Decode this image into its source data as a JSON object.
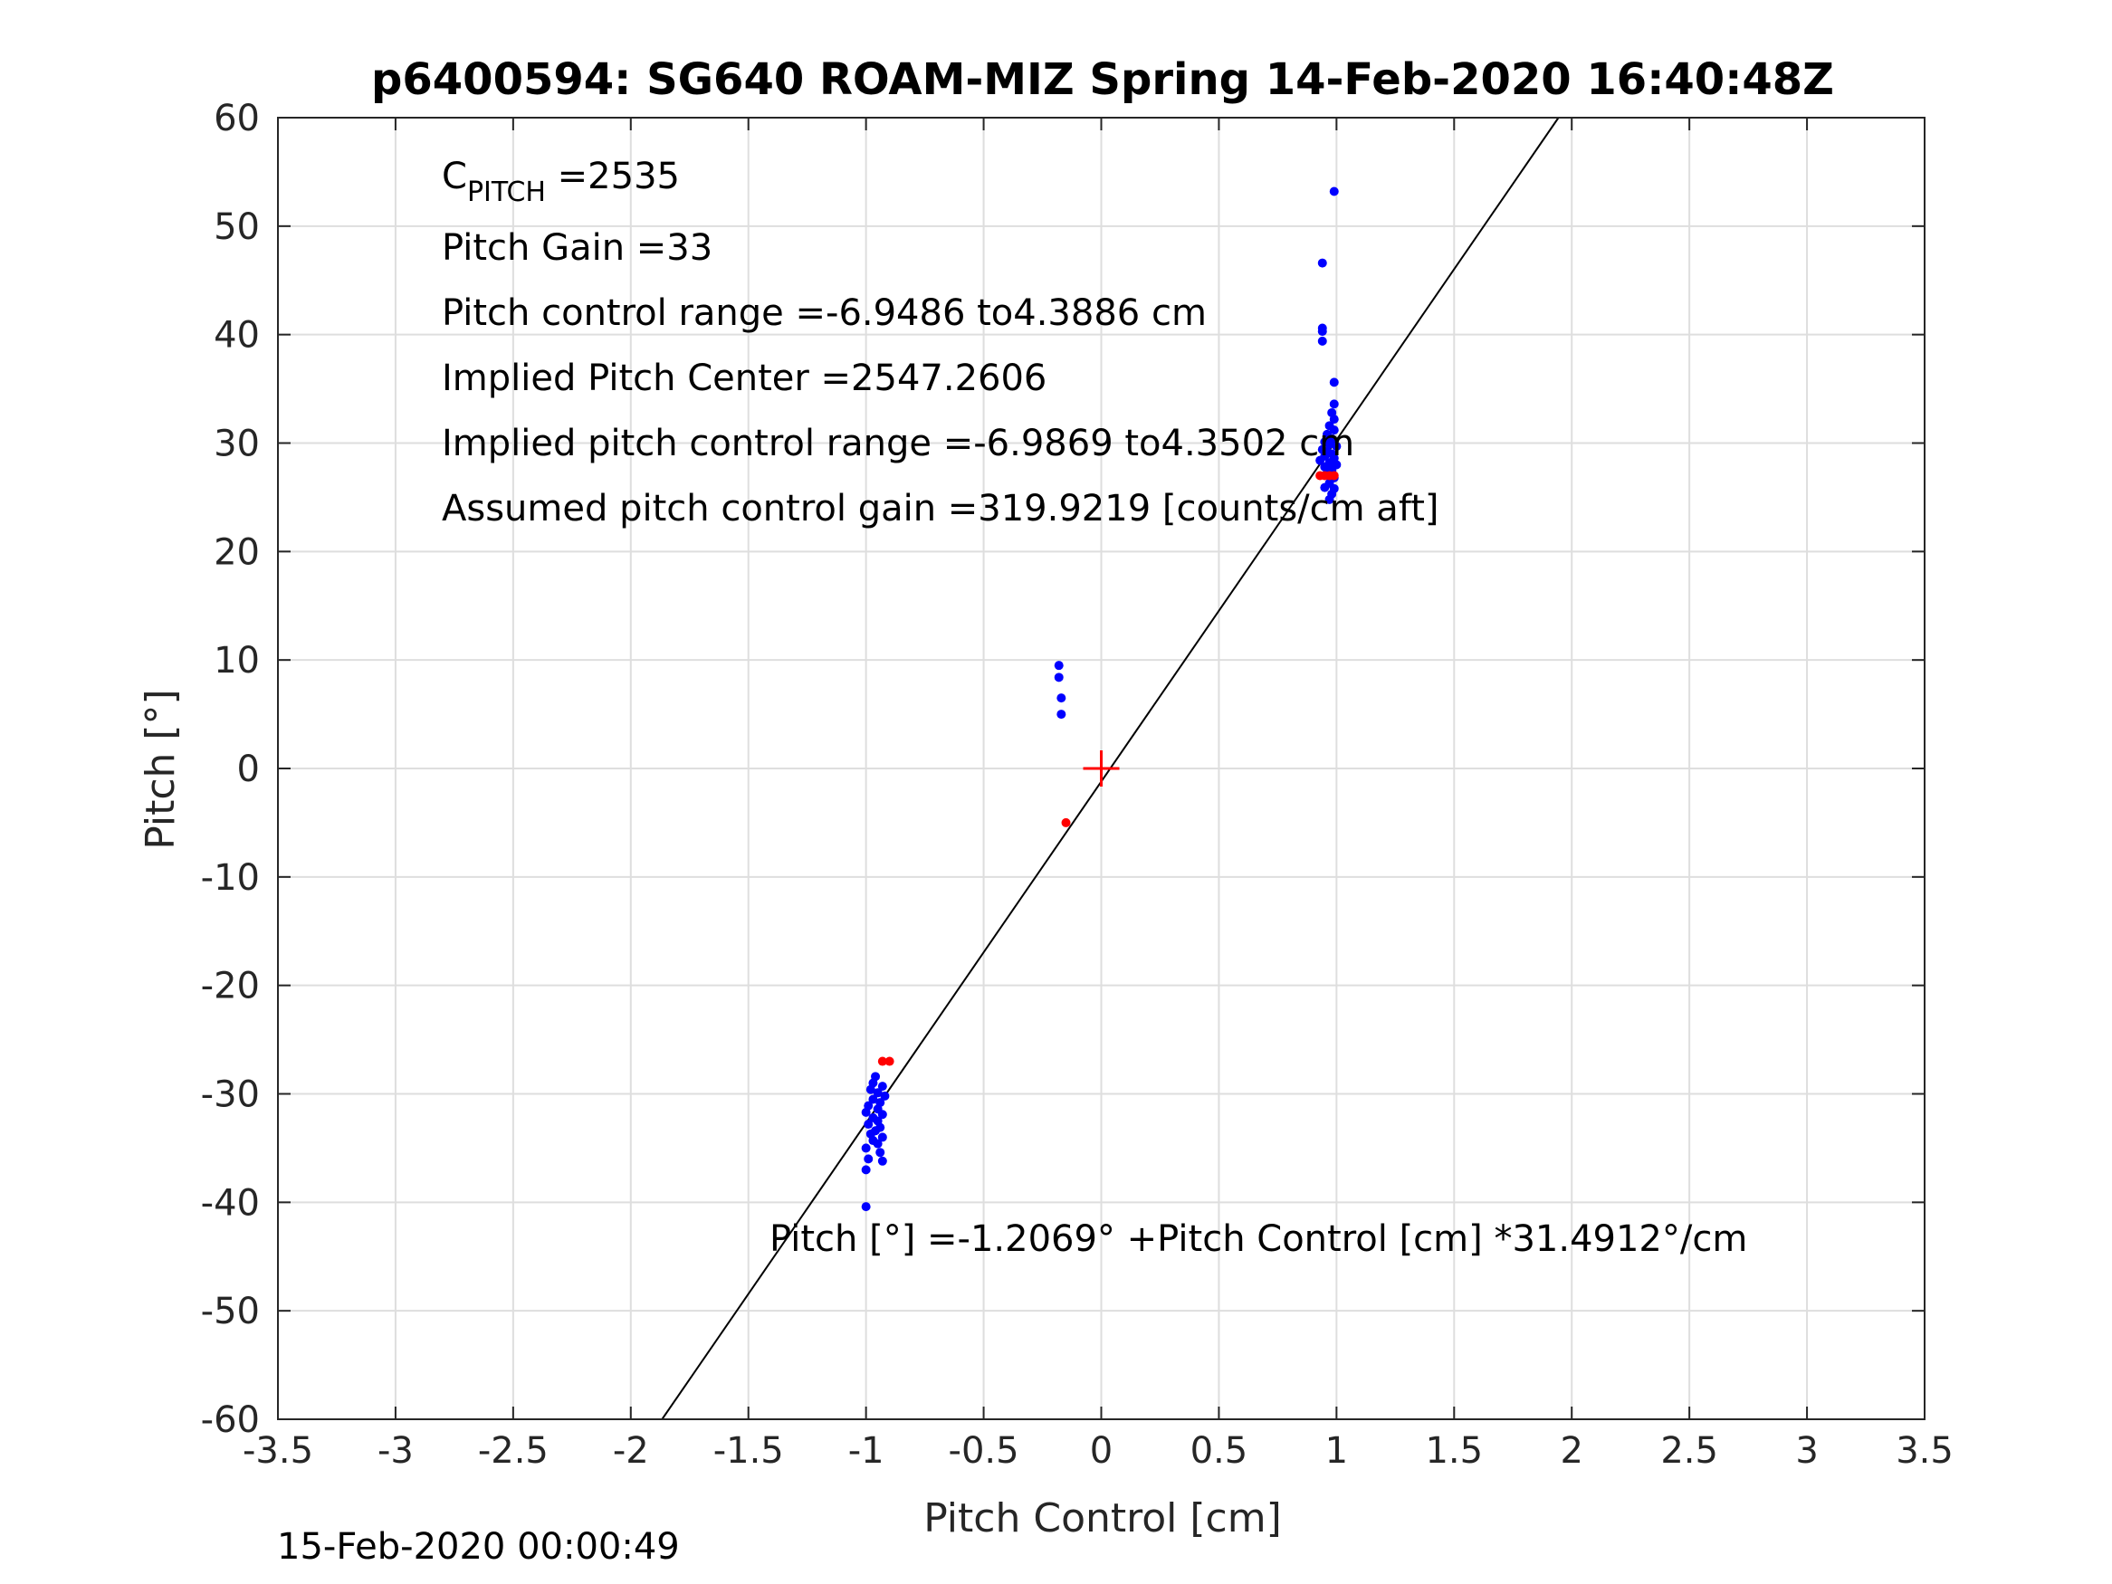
{
  "chart_data": {
    "type": "scatter",
    "title": "p6400594: SG640 ROAM-MIZ Spring 14-Feb-2020 16:40:48Z",
    "xlabel": "Pitch Control [cm]",
    "ylabel": "Pitch [°]",
    "xlim": [
      -3.5,
      3.5
    ],
    "ylim": [
      -60,
      60
    ],
    "xticks": [
      -3.5,
      -3,
      -2.5,
      -2,
      -1.5,
      -1,
      -0.5,
      0,
      0.5,
      1,
      1.5,
      2,
      2.5,
      3,
      3.5
    ],
    "yticks": [
      -60,
      -50,
      -40,
      -30,
      -20,
      -10,
      0,
      10,
      20,
      30,
      40,
      50,
      60
    ],
    "grid": true,
    "fit_line": {
      "intercept": -1.2069,
      "slope": 31.4912,
      "color": "#000000"
    },
    "center_marker": {
      "x": 0,
      "y": 0,
      "color": "#ff0000",
      "symbol": "+"
    },
    "series": [
      {
        "color": "#0000ff",
        "points": [
          [
            0.99,
            53.2
          ],
          [
            0.94,
            46.6
          ],
          [
            0.94,
            40.6
          ],
          [
            0.94,
            40.3
          ],
          [
            0.94,
            39.4
          ],
          [
            0.99,
            35.6
          ],
          [
            0.99,
            33.6
          ],
          [
            0.98,
            32.8
          ],
          [
            0.99,
            32.2
          ],
          [
            0.97,
            31.6
          ],
          [
            0.99,
            31.2
          ],
          [
            0.96,
            30.8
          ],
          [
            0.98,
            30.4
          ],
          [
            0.95,
            30.1
          ],
          [
            0.97,
            29.9
          ],
          [
            1.0,
            29.7
          ],
          [
            0.94,
            29.4
          ],
          [
            0.96,
            29.2
          ],
          [
            0.98,
            29.0
          ],
          [
            0.95,
            28.8
          ],
          [
            0.99,
            28.6
          ],
          [
            0.93,
            28.4
          ],
          [
            0.97,
            28.2
          ],
          [
            1.0,
            28.0
          ],
          [
            0.95,
            27.8
          ],
          [
            0.98,
            27.5
          ],
          [
            0.96,
            27.2
          ],
          [
            0.99,
            26.8
          ],
          [
            0.97,
            26.3
          ],
          [
            0.99,
            25.8
          ],
          [
            0.95,
            25.9
          ],
          [
            0.98,
            25.3
          ],
          [
            0.97,
            24.8
          ],
          [
            -0.18,
            9.5
          ],
          [
            -0.18,
            8.4
          ],
          [
            -0.17,
            6.5
          ],
          [
            -0.17,
            5.0
          ],
          [
            -0.96,
            -28.4
          ],
          [
            -0.97,
            -29.0
          ],
          [
            -0.93,
            -29.3
          ],
          [
            -0.98,
            -29.6
          ],
          [
            -0.95,
            -29.9
          ],
          [
            -0.92,
            -30.2
          ],
          [
            -0.97,
            -30.5
          ],
          [
            -0.94,
            -30.8
          ],
          [
            -0.99,
            -31.1
          ],
          [
            -0.95,
            -31.4
          ],
          [
            -1.0,
            -31.7
          ],
          [
            -0.93,
            -31.9
          ],
          [
            -0.97,
            -32.2
          ],
          [
            -0.95,
            -32.5
          ],
          [
            -0.99,
            -32.8
          ],
          [
            -0.94,
            -33.1
          ],
          [
            -0.96,
            -33.4
          ],
          [
            -0.98,
            -33.7
          ],
          [
            -0.93,
            -34.0
          ],
          [
            -0.97,
            -34.3
          ],
          [
            -0.95,
            -34.6
          ],
          [
            -1.0,
            -35.0
          ],
          [
            -0.94,
            -35.4
          ],
          [
            -0.99,
            -36.0
          ],
          [
            -0.93,
            -36.2
          ],
          [
            -1.0,
            -37.0
          ],
          [
            -1.0,
            -40.4
          ]
        ]
      },
      {
        "color": "#ff0000",
        "points": [
          [
            0.93,
            27.0
          ],
          [
            0.95,
            27.0
          ],
          [
            0.97,
            27.0
          ],
          [
            0.99,
            27.0
          ],
          [
            -0.15,
            -5.0
          ],
          [
            -0.93,
            -27.0
          ],
          [
            -0.9,
            -27.0
          ]
        ]
      }
    ],
    "annotations": [
      {
        "main": "C",
        "sub": "PITCH",
        "rest": " =2535"
      },
      {
        "text": "Pitch Gain =33"
      },
      {
        "text": "Pitch control range =-6.9486 to4.3886 cm"
      },
      {
        "text": "Implied Pitch Center =2547.2606"
      },
      {
        "text": "Implied pitch control range =-6.9869 to4.3502 cm"
      },
      {
        "text": "Assumed pitch control gain =319.9219 [counts/cm aft]"
      }
    ],
    "equation": "Pitch [°] =-1.2069° +Pitch Control [cm] *31.4912°/cm"
  },
  "footer": {
    "timestamp": "15-Feb-2020 00:00:49"
  }
}
